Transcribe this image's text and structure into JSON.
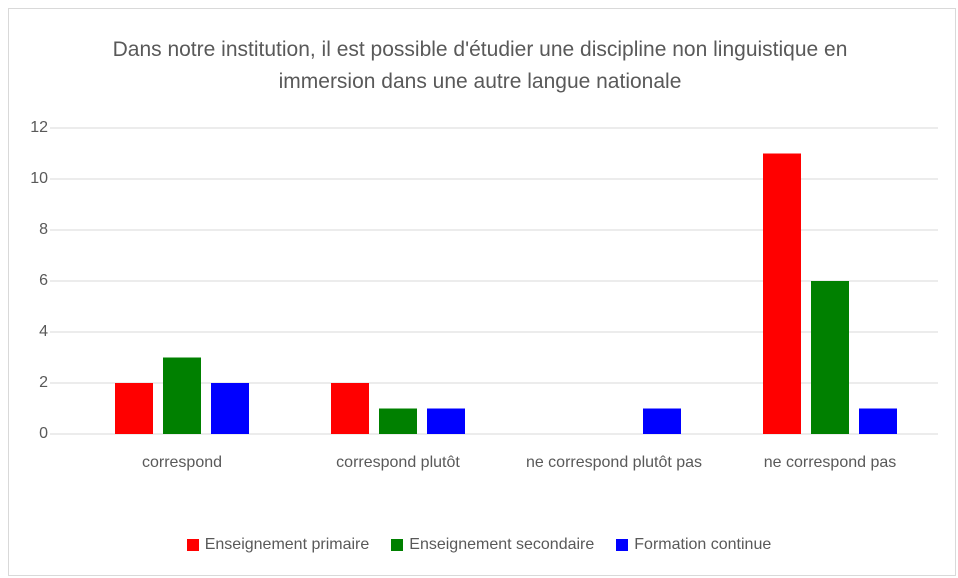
{
  "chart_data": {
    "type": "bar",
    "title": "Dans notre institution, il est possible d'étudier une discipline non linguistique en immersion dans une autre langue nationale",
    "categories": [
      "correspond",
      "correspond plutôt",
      "ne correspond plutôt pas",
      "ne correspond pas"
    ],
    "series": [
      {
        "name": "Enseignement primaire",
        "color": "#ff0000",
        "values": [
          2,
          2,
          0,
          11
        ]
      },
      {
        "name": "Enseignement secondaire",
        "color": "#008000",
        "values": [
          3,
          1,
          0,
          6
        ]
      },
      {
        "name": "Formation continue",
        "color": "#0000ff",
        "values": [
          2,
          1,
          1,
          1
        ]
      }
    ],
    "ylim": [
      0,
      12
    ],
    "yticks": [
      0,
      2,
      4,
      6,
      8,
      10,
      12
    ],
    "grid": true,
    "legend": "bottom"
  }
}
